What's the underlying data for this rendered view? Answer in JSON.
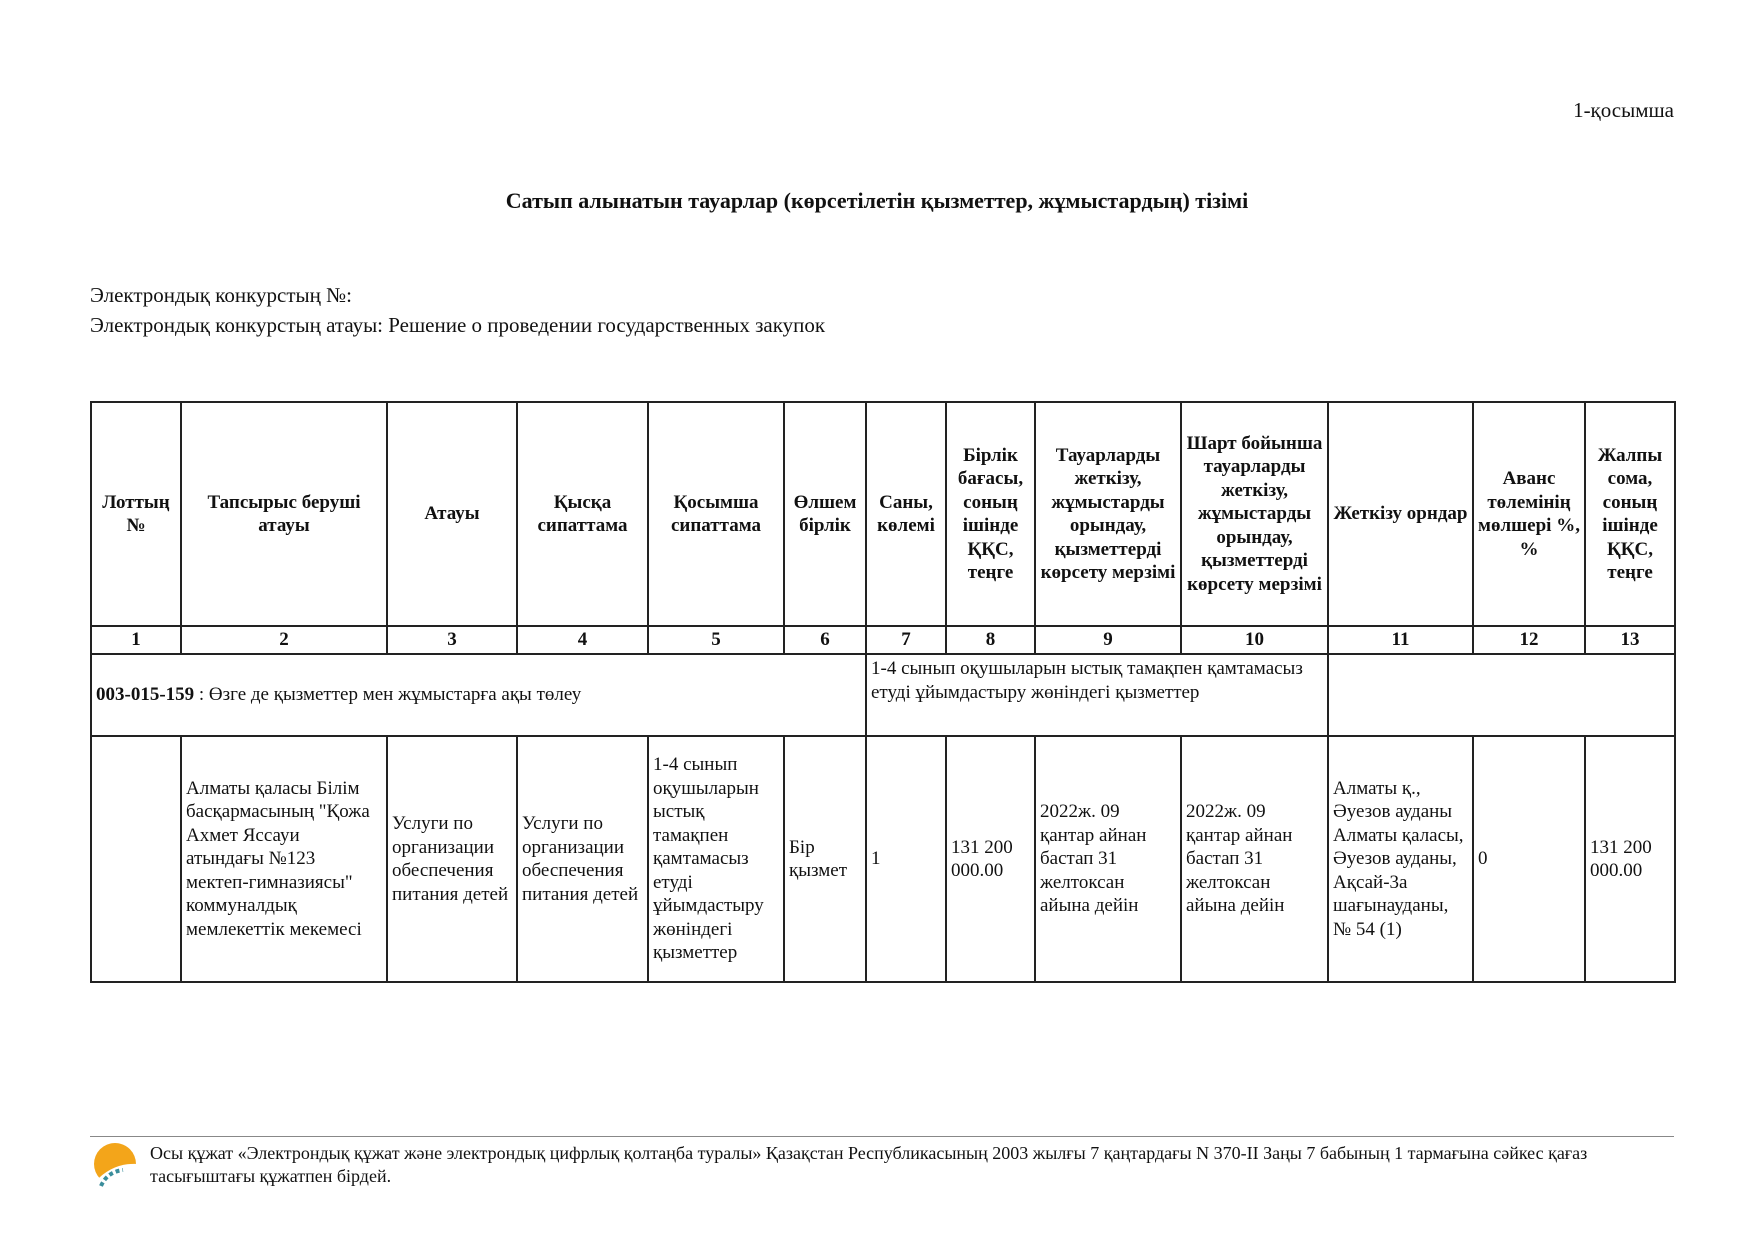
{
  "annex_label": "1-қосымша",
  "title": "Сатып алынатын тауарлар (көрсетілетін қызметтер, жұмыстардың) тізімі",
  "contest_number_label": "Электрондық конкурстың №:",
  "contest_name_label": "Электрондық конкурстың атауы: Решение о проведении государственных закупок",
  "table": {
    "headers": [
      "Лоттың №",
      "Тапсырыс беруші атауы",
      "Атауы",
      "Қысқа сипаттама",
      "Қосымша сипаттама",
      "Өлшем бірлік",
      "Саны, көлемі",
      "Бірлік бағасы, соның ішінде ҚҚС, теңге",
      "Тауарларды жеткізу, жұмыстарды орындау, қызметтерді көрсету мерзімі",
      "Шарт бойынша тауарларды жеткізу, жұмыстарды орындау, қызметтерді көрсету мерзімі",
      "Жеткізу орндар",
      "Аванс төлемінің мөлшері %, %",
      "Жалпы сома, соның ішінде ҚҚС, теңге"
    ],
    "numbers": [
      "1",
      "2",
      "3",
      "4",
      "5",
      "6",
      "7",
      "8",
      "9",
      "10",
      "11",
      "12",
      "13"
    ],
    "group": {
      "code": "003-015-159",
      "name": " : Өзге де қызметтер мен жұмыстарға ақы төлеу",
      "description": "1-4 сынып оқушыларын ыстық тамақпен қамтамасыз етуді ұйымдастыру жөніндегі қызметтер"
    },
    "rows": [
      [
        "",
        "Алматы қаласы Білім басқармасының \"Қожа Ахмет Яссауи атындағы №123 мектеп-гимназиясы\" коммуналдық мемлекеттік мекемесі",
        "Услуги по организации обеспечения питания детей",
        "Услуги по организации обеспечения питания детей",
        "1-4 сынып оқушыларын ыстық тамақпен қамтамасыз етуді ұйымдастыру жөніндегі қызметтер",
        "Бір қызмет",
        "1",
        "131 200 000.00",
        "2022ж. 09 қантар айнан бастап 31 желтоксан айына дейін",
        "2022ж. 09 қантар айнан бастап 31 желтоксан айына дейін",
        "Алматы қ., Әуезов ауданы Алматы қаласы, Әуезов ауданы, Ақсай-3а шағынауданы, № 54 (1)",
        "0",
        "131 200 000.00"
      ]
    ]
  },
  "footer": {
    "logo_icon": "e-gov-sun-logo",
    "text": "Осы құжат «Электрондық құжат және электрондық цифрлық қолтаңба туралы» Қазақстан Республикасының 2003 жылғы 7 қаңтардағы N 370-II Заңы 7 бабының 1 тармағына сәйкес қағаз тасығыштағы құжатпен бірдей."
  }
}
